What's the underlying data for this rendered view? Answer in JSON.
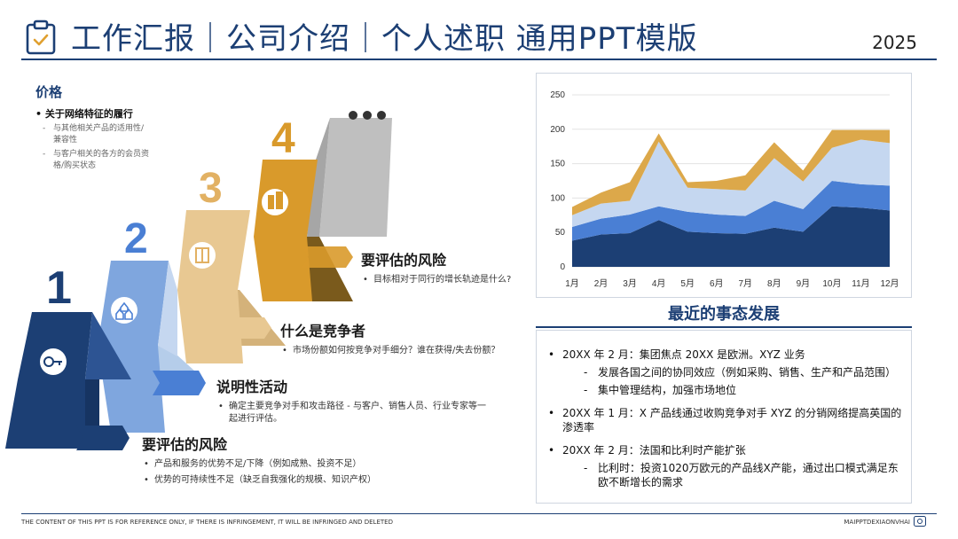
{
  "header": {
    "title": "工作汇报｜公司介绍｜个人述职 通用PPT模版",
    "year": "2025",
    "icon": "clipboard-check-icon"
  },
  "left": {
    "section_title": "价格",
    "bullet": "关于网络特征的履行",
    "sub_items": [
      "与其他相关产品的适用性/兼容性",
      "与客户相关的各方的会员资格/购买状态"
    ]
  },
  "stairs": {
    "numbers": [
      "1",
      "2",
      "3",
      "4"
    ],
    "icons": [
      "key-icon",
      "houses-icon",
      "building-icon",
      "office-building-icon"
    ],
    "colors": {
      "step1": "#1c3f74",
      "step2": "#7fa6de",
      "step3": "#e8c892",
      "step4": "#d99a2b",
      "step5": "#bfbfbf"
    }
  },
  "steps": [
    {
      "title": "要评估的风险",
      "lines": [
        "目标相对于同行的增长轨迹是什么?"
      ]
    },
    {
      "title": "什么是竞争者",
      "lines": [
        "市场份额如何按竞争对手细分？谁在获得/失去份额？"
      ]
    },
    {
      "title": "说明性活动",
      "lines": [
        "确定主要竞争对手和攻击路径 - 与客户、销售人员、行业专家等一起进行评估。"
      ]
    },
    {
      "title": "要评估的风险",
      "lines": [
        "产品和服务的优势不足/下降（例如成熟、投资不足）",
        "优势的可持续性不足（缺乏自我强化的规模、知识产权）"
      ]
    }
  ],
  "chart_data": {
    "type": "area",
    "stacked": true,
    "categories": [
      "1月",
      "2月",
      "3月",
      "4月",
      "5月",
      "6月",
      "7月",
      "8月",
      "9月",
      "10月",
      "11月",
      "12月"
    ],
    "ylim": [
      0,
      250
    ],
    "yticks": [
      0,
      50,
      100,
      150,
      200,
      250
    ],
    "grid": true,
    "series": [
      {
        "values": [
          38,
          47,
          49,
          68,
          51,
          49,
          48,
          57,
          51,
          88,
          86,
          82
        ],
        "color": "#1c3f74"
      },
      {
        "values": [
          20,
          23,
          27,
          20,
          29,
          27,
          26,
          39,
          33,
          37,
          34,
          36
        ],
        "color": "#4a7fd4"
      },
      {
        "values": [
          17,
          22,
          20,
          94,
          35,
          37,
          37,
          62,
          40,
          48,
          65,
          62
        ],
        "color": "#c5d7f0"
      },
      {
        "values": [
          12,
          16,
          27,
          12,
          8,
          12,
          22,
          23,
          16,
          26,
          14,
          19
        ],
        "color": "#dca84a"
      }
    ]
  },
  "events": {
    "title": "最近的事态发展",
    "items": [
      {
        "text": "20XX 年 2 月：集团焦点 20XX 是欧洲。XYZ 业务",
        "subs": [
          "发展各国之间的协同效应（例如采购、销售、生产和产品范围）",
          "集中管理结构，加强市场地位"
        ]
      },
      {
        "text": "20XX 年 1 月：X 产品线通过收购竞争对手 XYZ 的分销网络提高英国的渗透率",
        "subs": []
      },
      {
        "text": "20XX 年 2 月：法国和比利时产能扩张",
        "subs": [
          "比利时：投资1020万欧元的产品线X产能，通过出口模式满足东欧不断增长的需求"
        ]
      }
    ]
  },
  "footer": {
    "disclaimer": "THE CONTENT OF THIS PPT IS FOR REFERENCE ONLY, IF THERE IS INFRINGEMENT, IT WILL BE INFRINGED AND DELETED",
    "brand": "MAIPPTDEXIAONVHAI"
  }
}
